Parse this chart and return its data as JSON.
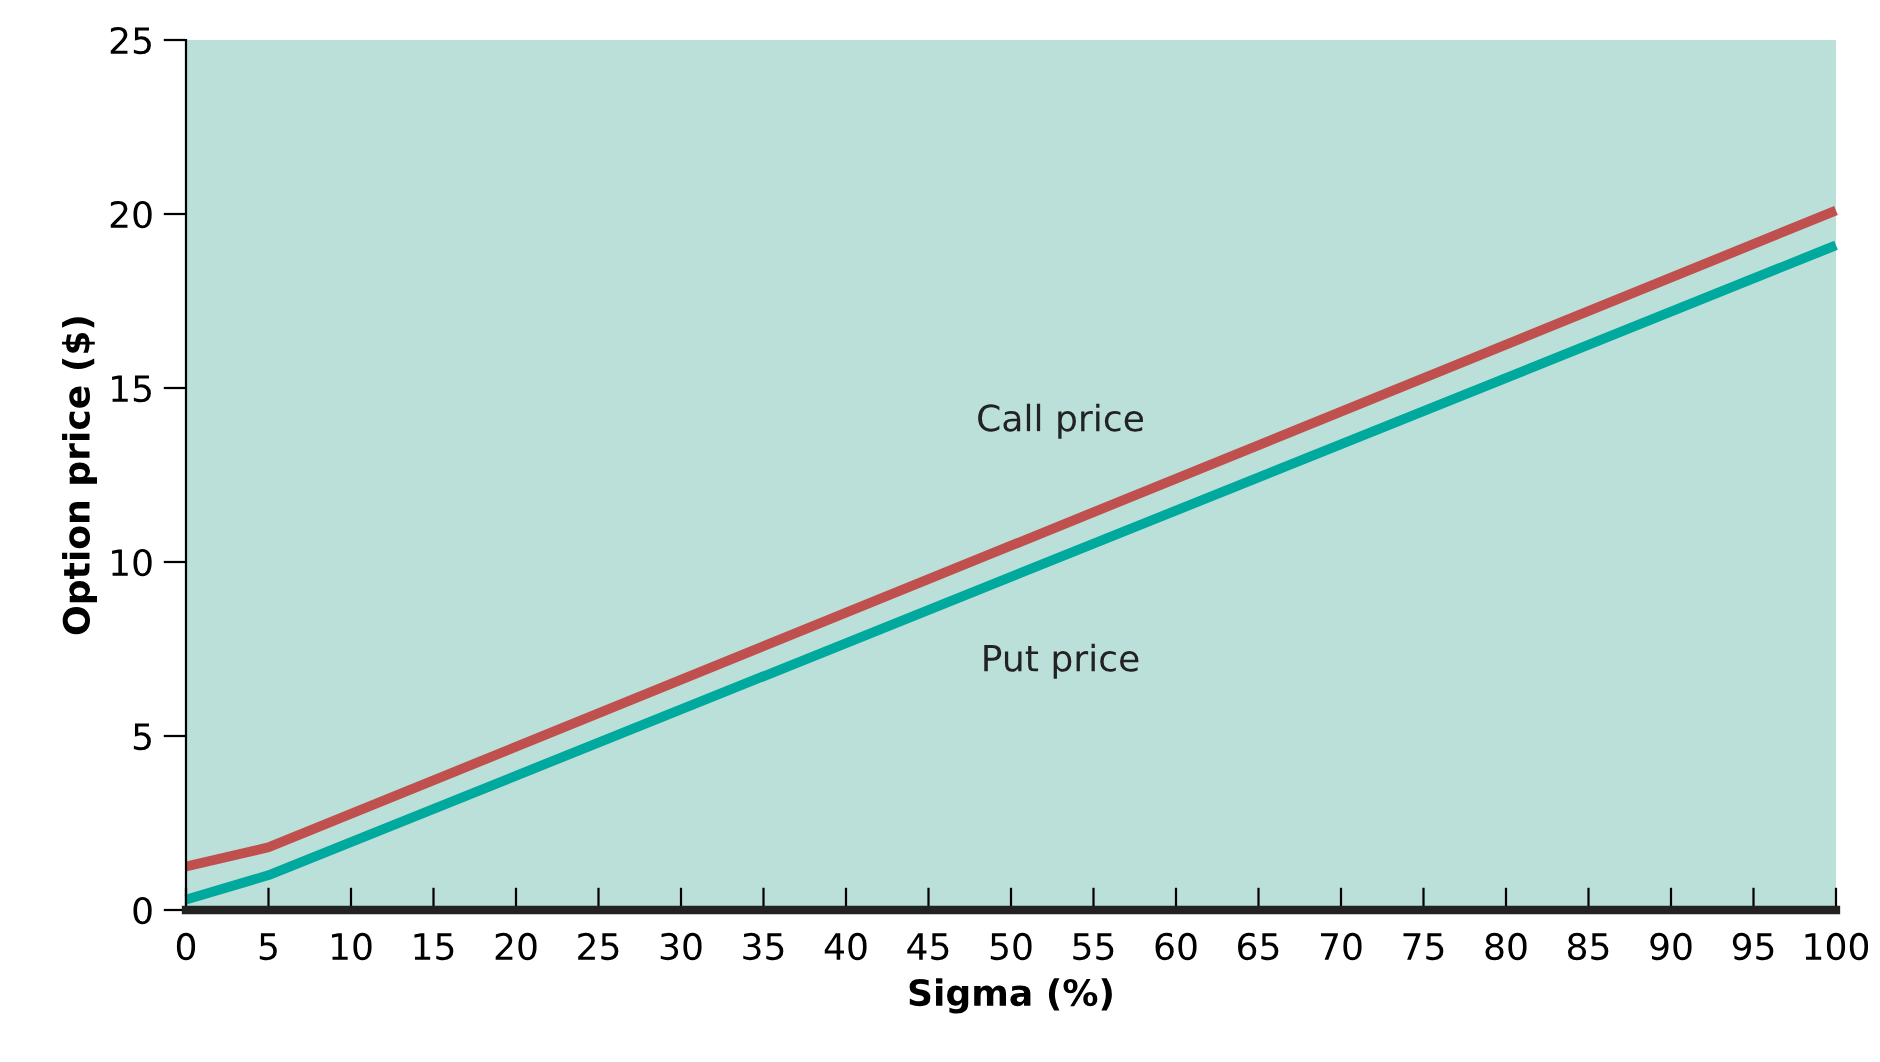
{
  "chart_data": {
    "type": "line",
    "xlabel": "Sigma (%)",
    "ylabel": "Option price ($)",
    "xlim": [
      0,
      100
    ],
    "xticks": [
      0,
      5,
      10,
      15,
      20,
      25,
      30,
      35,
      40,
      45,
      50,
      55,
      60,
      65,
      70,
      75,
      80,
      85,
      90,
      95,
      100
    ],
    "ylim": [
      0,
      25
    ],
    "yticks": [
      0,
      5,
      10,
      15,
      20,
      25
    ],
    "grid": false,
    "legend": false,
    "series": [
      {
        "name": "Call price",
        "color": "#c0504d",
        "x": [
          0,
          5,
          100
        ],
        "values": [
          1.25,
          1.8,
          20.1
        ]
      },
      {
        "name": "Put price",
        "color": "#00a99d",
        "x": [
          0,
          5,
          100
        ],
        "values": [
          0.3,
          1.0,
          19.1
        ]
      }
    ]
  }
}
